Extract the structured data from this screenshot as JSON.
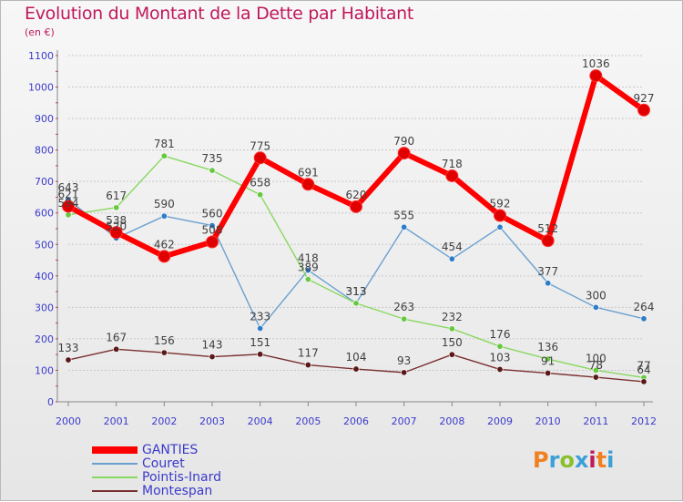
{
  "title": "Evolution du Montant de la Dette par Habitant",
  "unit": "(en €)",
  "logo_text": "Proxiti",
  "colors": {
    "title": "#c0185a",
    "axis_text": "#3a3acc",
    "grid": "#c8c8c8",
    "logo": [
      "#f08020",
      "#3aa0d8",
      "#88c030",
      "#3aa0d8",
      "#c0185a",
      "#f08020",
      "#3aa0d8"
    ]
  },
  "chart_data": {
    "type": "line",
    "title": "Evolution du Montant de la Dette par Habitant",
    "subtitle": "(en €)",
    "x": [
      "2000",
      "2001",
      "2002",
      "2003",
      "2004",
      "2005",
      "2006",
      "2007",
      "2008",
      "2009",
      "2010",
      "2011",
      "2012"
    ],
    "ylim": [
      0,
      1100
    ],
    "yticks": [
      0,
      100,
      200,
      300,
      400,
      500,
      600,
      700,
      800,
      900,
      1000,
      1100
    ],
    "grid": "horizontal",
    "legend_position": "bottom-left",
    "series": [
      {
        "name": "GANTIES",
        "color": "#ff0000",
        "width": 6,
        "marker_color": "#e00000",
        "values": [
          621,
          538,
          462,
          508,
          775,
          691,
          620,
          790,
          718,
          592,
          512,
          1036,
          927
        ],
        "labels": [
          "621",
          "538",
          "462",
          "508",
          "775",
          "691",
          "620",
          "790",
          "718",
          "592",
          "512",
          "1036",
          "927"
        ]
      },
      {
        "name": "Couret",
        "color": "#6aa0d0",
        "width": 1.4,
        "marker_color": "#2e7cc8",
        "values": [
          643,
          520,
          590,
          560,
          233,
          418,
          313,
          555,
          454,
          555,
          377,
          300,
          264
        ],
        "labels": [
          "643",
          "520",
          "590",
          "560",
          "233",
          "418",
          "313",
          "555",
          "454",
          "",
          "377",
          "300",
          "264"
        ]
      },
      {
        "name": "Pointis-Inard",
        "color": "#88d860",
        "width": 1.4,
        "marker_color": "#66c840",
        "values": [
          594,
          617,
          781,
          735,
          658,
          389,
          313,
          263,
          232,
          176,
          136,
          100,
          77
        ],
        "labels": [
          "594",
          "617",
          "781",
          "735",
          "658",
          "389",
          "313",
          "263",
          "232",
          "176",
          "136",
          "100",
          "77"
        ]
      },
      {
        "name": "Montespan",
        "color": "#7a3030",
        "width": 1.4,
        "marker_color": "#5a1818",
        "values": [
          133,
          167,
          156,
          143,
          151,
          117,
          104,
          93,
          150,
          103,
          91,
          78,
          64
        ],
        "labels": [
          "133",
          "167",
          "156",
          "143",
          "151",
          "117",
          "104",
          "93",
          "150",
          "103",
          "91",
          "78",
          "64"
        ]
      }
    ]
  }
}
